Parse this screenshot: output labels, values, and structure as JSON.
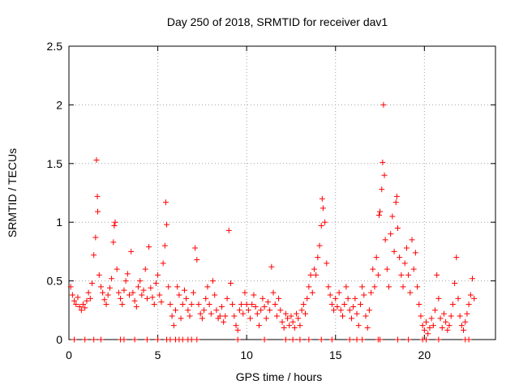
{
  "colors": {
    "series": "#ff0000",
    "grid": "#a0a0a0",
    "axis": "#000000"
  },
  "chart_data": {
    "type": "scatter",
    "title": "Day 250 of 2018, SRMTID for receiver dav1",
    "xlabel": "GPS time / hours",
    "ylabel": "SRMTID / TECUs",
    "xlim": [
      0,
      24
    ],
    "ylim": [
      0,
      2.5
    ],
    "x_ticks": [
      0,
      5,
      10,
      15,
      20
    ],
    "x_tick_labels": [
      "0",
      "5",
      "10",
      "15",
      "20"
    ],
    "y_ticks": [
      0,
      0.5,
      1,
      1.5,
      2,
      2.5
    ],
    "y_tick_labels": [
      "0",
      "0.5",
      "1",
      "1.5",
      "2",
      "2.5"
    ],
    "grid": true,
    "marker": "+",
    "series": [
      {
        "name": "SRMTID",
        "points": [
          [
            0.1,
            0.45
          ],
          [
            0.2,
            0.38
          ],
          [
            0.3,
            0.33
          ],
          [
            0.4,
            0.3
          ],
          [
            0.5,
            0.36
          ],
          [
            0.6,
            0.28
          ],
          [
            0.7,
            0.25
          ],
          [
            0.8,
            0.3
          ],
          [
            0.9,
            0.27
          ],
          [
            1.0,
            0.33
          ],
          [
            1.1,
            0.4
          ],
          [
            1.2,
            0.35
          ],
          [
            1.3,
            0.48
          ],
          [
            1.4,
            0.72
          ],
          [
            1.5,
            0.87
          ],
          [
            1.55,
            1.53
          ],
          [
            1.6,
            1.22
          ],
          [
            1.62,
            1.09
          ],
          [
            1.7,
            0.55
          ],
          [
            1.8,
            0.45
          ],
          [
            1.9,
            0.4
          ],
          [
            2.0,
            0.34
          ],
          [
            2.1,
            0.3
          ],
          [
            2.2,
            0.38
          ],
          [
            2.3,
            0.44
          ],
          [
            2.4,
            0.52
          ],
          [
            2.5,
            0.83
          ],
          [
            2.55,
            0.97
          ],
          [
            2.6,
            1.0
          ],
          [
            2.7,
            0.6
          ],
          [
            2.8,
            0.4
          ],
          [
            2.9,
            0.35
          ],
          [
            3.0,
            0.3
          ],
          [
            3.1,
            0.42
          ],
          [
            3.2,
            0.5
          ],
          [
            3.3,
            0.56
          ],
          [
            3.4,
            0.38
          ],
          [
            3.5,
            0.75
          ],
          [
            3.6,
            0.4
          ],
          [
            3.7,
            0.33
          ],
          [
            3.8,
            0.28
          ],
          [
            3.9,
            0.45
          ],
          [
            4.0,
            0.5
          ],
          [
            4.1,
            0.38
          ],
          [
            4.2,
            0.42
          ],
          [
            4.3,
            0.6
          ],
          [
            4.4,
            0.35
          ],
          [
            4.5,
            0.79
          ],
          [
            4.6,
            0.44
          ],
          [
            4.7,
            0.36
          ],
          [
            4.8,
            0.3
          ],
          [
            4.9,
            0.48
          ],
          [
            5.0,
            0.55
          ],
          [
            5.1,
            0.38
          ],
          [
            5.2,
            0.32
          ],
          [
            5.3,
            0.65
          ],
          [
            5.4,
            0.8
          ],
          [
            5.45,
            1.17
          ],
          [
            5.5,
            0.98
          ],
          [
            5.6,
            0.45
          ],
          [
            5.7,
            0.3
          ],
          [
            5.8,
            0.2
          ],
          [
            5.9,
            0.12
          ],
          [
            6.0,
            0.25
          ],
          [
            6.1,
            0.45
          ],
          [
            6.2,
            0.38
          ],
          [
            6.3,
            0.18
          ],
          [
            6.4,
            0.3
          ],
          [
            6.5,
            0.42
          ],
          [
            6.6,
            0.35
          ],
          [
            6.7,
            0.25
          ],
          [
            6.8,
            0.2
          ],
          [
            6.9,
            0.3
          ],
          [
            7.0,
            0.4
          ],
          [
            7.1,
            0.78
          ],
          [
            7.2,
            0.68
          ],
          [
            7.3,
            0.3
          ],
          [
            7.4,
            0.22
          ],
          [
            7.5,
            0.18
          ],
          [
            7.6,
            0.25
          ],
          [
            7.7,
            0.35
          ],
          [
            7.8,
            0.45
          ],
          [
            7.9,
            0.3
          ],
          [
            8.0,
            0.22
          ],
          [
            8.1,
            0.5
          ],
          [
            8.2,
            0.38
          ],
          [
            8.3,
            0.25
          ],
          [
            8.4,
            0.18
          ],
          [
            8.5,
            0.2
          ],
          [
            8.6,
            0.28
          ],
          [
            8.7,
            0.15
          ],
          [
            8.8,
            0.2
          ],
          [
            8.9,
            0.35
          ],
          [
            9.0,
            0.93
          ],
          [
            9.1,
            0.48
          ],
          [
            9.2,
            0.3
          ],
          [
            9.3,
            0.2
          ],
          [
            9.4,
            0.12
          ],
          [
            9.5,
            0.08
          ],
          [
            9.6,
            0.25
          ],
          [
            9.7,
            0.3
          ],
          [
            9.8,
            0.22
          ],
          [
            9.9,
            0.4
          ],
          [
            10.0,
            0.3
          ],
          [
            10.1,
            0.25
          ],
          [
            10.2,
            0.18
          ],
          [
            10.3,
            0.3
          ],
          [
            10.4,
            0.38
          ],
          [
            10.5,
            0.28
          ],
          [
            10.6,
            0.22
          ],
          [
            10.7,
            0.12
          ],
          [
            10.8,
            0.25
          ],
          [
            10.9,
            0.35
          ],
          [
            11.0,
            0.28
          ],
          [
            11.1,
            0.18
          ],
          [
            11.2,
            0.32
          ],
          [
            11.3,
            0.25
          ],
          [
            11.4,
            0.62
          ],
          [
            11.5,
            0.4
          ],
          [
            11.6,
            0.3
          ],
          [
            11.7,
            0.2
          ],
          [
            11.8,
            0.35
          ],
          [
            11.9,
            0.25
          ],
          [
            12.0,
            0.15
          ],
          [
            12.1,
            0.1
          ],
          [
            12.2,
            0.22
          ],
          [
            12.3,
            0.18
          ],
          [
            12.4,
            0.12
          ],
          [
            12.5,
            0.2
          ],
          [
            12.6,
            0.15
          ],
          [
            12.7,
            0.1
          ],
          [
            12.8,
            0.22
          ],
          [
            12.9,
            0.18
          ],
          [
            13.0,
            0.12
          ],
          [
            13.1,
            0.25
          ],
          [
            13.2,
            0.3
          ],
          [
            13.3,
            0.22
          ],
          [
            13.4,
            0.35
          ],
          [
            13.5,
            0.45
          ],
          [
            13.6,
            0.55
          ],
          [
            13.7,
            0.4
          ],
          [
            13.8,
            0.6
          ],
          [
            13.9,
            0.55
          ],
          [
            14.0,
            0.7
          ],
          [
            14.1,
            0.8
          ],
          [
            14.2,
            0.97
          ],
          [
            14.25,
            1.2
          ],
          [
            14.3,
            1.12
          ],
          [
            14.4,
            1.0
          ],
          [
            14.5,
            0.65
          ],
          [
            14.6,
            0.45
          ],
          [
            14.7,
            0.38
          ],
          [
            14.8,
            0.3
          ],
          [
            14.9,
            0.25
          ],
          [
            15.0,
            0.35
          ],
          [
            15.1,
            0.28
          ],
          [
            15.2,
            0.4
          ],
          [
            15.3,
            0.25
          ],
          [
            15.4,
            0.2
          ],
          [
            15.5,
            0.3
          ],
          [
            15.6,
            0.45
          ],
          [
            15.7,
            0.35
          ],
          [
            15.8,
            0.25
          ],
          [
            15.9,
            0.18
          ],
          [
            16.0,
            0.28
          ],
          [
            16.1,
            0.35
          ],
          [
            16.2,
            0.22
          ],
          [
            16.3,
            0.12
          ],
          [
            16.4,
            0.3
          ],
          [
            16.5,
            0.45
          ],
          [
            16.6,
            0.38
          ],
          [
            16.7,
            0.2
          ],
          [
            16.8,
            0.1
          ],
          [
            16.9,
            0.25
          ],
          [
            17.0,
            0.4
          ],
          [
            17.1,
            0.6
          ],
          [
            17.2,
            0.45
          ],
          [
            17.3,
            0.7
          ],
          [
            17.4,
            0.55
          ],
          [
            17.45,
            1.06
          ],
          [
            17.5,
            1.09
          ],
          [
            17.6,
            1.28
          ],
          [
            17.65,
            1.51
          ],
          [
            17.7,
            2.0
          ],
          [
            17.75,
            1.4
          ],
          [
            17.8,
            0.85
          ],
          [
            17.9,
            0.6
          ],
          [
            18.0,
            0.45
          ],
          [
            18.1,
            0.9
          ],
          [
            18.2,
            1.05
          ],
          [
            18.3,
            0.75
          ],
          [
            18.4,
            1.17
          ],
          [
            18.45,
            1.22
          ],
          [
            18.5,
            0.95
          ],
          [
            18.6,
            0.7
          ],
          [
            18.7,
            0.55
          ],
          [
            18.8,
            0.45
          ],
          [
            18.9,
            0.65
          ],
          [
            19.0,
            0.78
          ],
          [
            19.1,
            0.55
          ],
          [
            19.2,
            0.4
          ],
          [
            19.3,
            0.85
          ],
          [
            19.4,
            0.6
          ],
          [
            19.5,
            0.74
          ],
          [
            19.6,
            0.45
          ],
          [
            19.7,
            0.3
          ],
          [
            19.8,
            0.2
          ],
          [
            19.9,
            0.12
          ],
          [
            20.0,
            0.08
          ],
          [
            20.1,
            0.15
          ],
          [
            20.2,
            0.05
          ],
          [
            20.3,
            0.1
          ],
          [
            20.4,
            0.18
          ],
          [
            20.5,
            0.12
          ],
          [
            20.6,
            0.25
          ],
          [
            20.7,
            0.55
          ],
          [
            20.8,
            0.35
          ],
          [
            20.9,
            0.18
          ],
          [
            21.0,
            0.1
          ],
          [
            21.1,
            0.22
          ],
          [
            21.2,
            0.15
          ],
          [
            21.3,
            0.08
          ],
          [
            21.4,
            0.12
          ],
          [
            21.5,
            0.2
          ],
          [
            21.6,
            0.3
          ],
          [
            21.7,
            0.48
          ],
          [
            21.8,
            0.7
          ],
          [
            21.9,
            0.35
          ],
          [
            22.0,
            0.2
          ],
          [
            22.1,
            0.12
          ],
          [
            22.2,
            0.08
          ],
          [
            22.3,
            0.15
          ],
          [
            22.4,
            0.22
          ],
          [
            22.5,
            0.3
          ],
          [
            22.6,
            0.38
          ],
          [
            22.7,
            0.52
          ],
          [
            22.8,
            0.35
          ]
        ]
      }
    ],
    "zero_points_x": [
      0.3,
      0.9,
      1.4,
      1.8,
      2.9,
      3.1,
      3.7,
      4.4,
      5.0,
      5.5,
      5.7,
      6.0,
      6.2,
      6.4,
      6.7,
      6.9,
      7.2,
      9.5,
      11.0,
      12.2,
      12.6,
      13.0,
      13.5,
      14.2,
      14.8,
      15.8,
      16.2,
      16.5,
      17.4,
      17.5,
      18.5,
      19.1,
      19.9,
      20.1,
      20.8,
      22.3,
      22.5
    ]
  }
}
